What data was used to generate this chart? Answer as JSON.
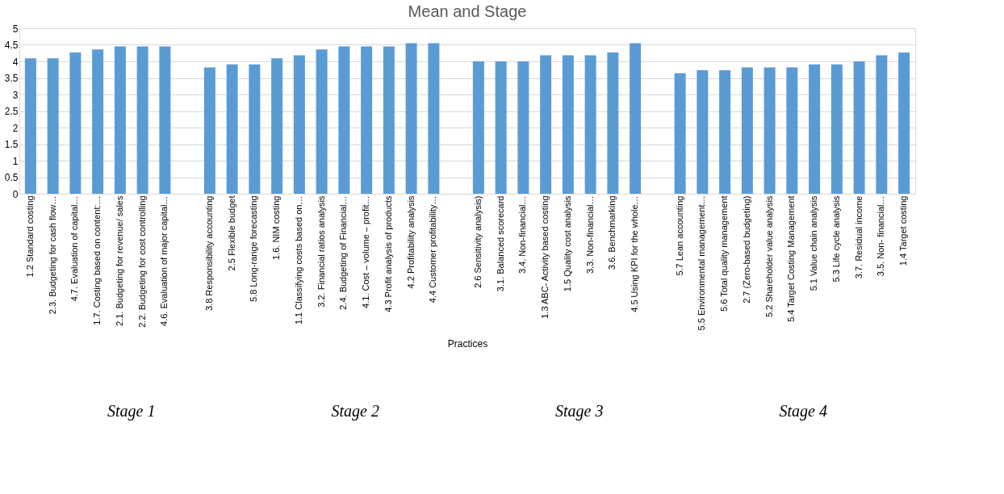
{
  "chart_data": {
    "type": "bar",
    "title": "Mean and Stage",
    "xlabel": "Practices",
    "categories": [
      "1.2 Standard costing",
      "2.3. Budgeting for cash flow…",
      "4.7. Evaluation of capital…",
      "1.7. Costing based on content:…",
      "2.1. Budgeting for revenue/ sales",
      "2.2. Budgeting for cost controlling",
      "4.6. Evaluation of major capital…",
      null,
      "3.8 Responsibility accounting",
      "2.5 Flexible budget",
      "5.8 Long-range forecasting",
      "1.6. NIM costing",
      "1.1 Classifying costs based on…",
      "3.2. Financial ratios analysis",
      "2.4. Budgeting of Financial…",
      "4.1. Cost – volume – profit…",
      "4.3 Profit analysis of products",
      "4.2 Profitability analysis",
      "4.4 Customer profitability…",
      null,
      "2.6 Sensitivity analysis)",
      "3.1. Balanced scorecard",
      "3.4. Non-financial…",
      "1.3 ABC- Activity based costing",
      "1.5 Quality cost analysis",
      "3.3. Non-financial…",
      "3.6. Benchmarking",
      "4.5 Using KPI for the whole…",
      null,
      "5.7 Lean accounting",
      "5.5 Environmental management…",
      "5.6 Total quality management",
      "2.7 (Zero-based budgeting)",
      "5.2 Shareholder value analysis",
      "5.4 Target Costing Management",
      "5.1 Value chain analysis",
      "5.3 Life cycle analysis",
      "3.7. Residual income",
      "3.5. Non- financial…",
      "1.4 Target costing"
    ],
    "series": [
      {
        "color": "#5b9bd5",
        "values": [
          4.09,
          4.09,
          4.27,
          4.36,
          4.45,
          4.45,
          4.45,
          null,
          3.82,
          3.91,
          3.91,
          4.09,
          4.18,
          4.36,
          4.45,
          4.45,
          4.45,
          4.55,
          4.55,
          null,
          4.0,
          4.0,
          4.0,
          4.18,
          4.18,
          4.18,
          4.27,
          4.55,
          null,
          3.64,
          3.73,
          3.73,
          3.82,
          3.82,
          3.82,
          3.91,
          3.91,
          4.0,
          4.18,
          4.27
        ]
      }
    ],
    "ylim": [
      0,
      5
    ],
    "yticks": [
      0,
      0.5,
      1,
      1.5,
      2,
      2.5,
      3,
      3.5,
      4,
      4.5,
      5
    ],
    "grid": "y",
    "legend": false,
    "annotations": [
      "Stage 1",
      "Stage 2",
      "Stage 3",
      "Stage 4"
    ]
  }
}
